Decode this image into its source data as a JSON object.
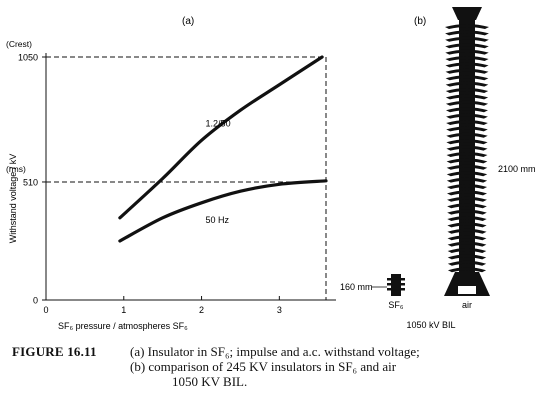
{
  "chart_data": [
    {
      "type": "line",
      "panel_label": "(a)",
      "xlabel": "SF₆ pressure / atmospheres SF₆",
      "ylabel": "Withstand voltage / kV",
      "xlim": [
        0,
        3.6
      ],
      "ylim": [
        0,
        1050
      ],
      "x_ticks": [
        "0",
        "1",
        "2",
        "3"
      ],
      "y_ticks": [
        "0",
        "510",
        "1050"
      ],
      "y_tick_values": [
        0,
        510,
        1050
      ],
      "y_units": [
        {
          "text": "(Crest)",
          "value": 1050
        },
        {
          "text": "(rms)",
          "value": 510
        }
      ],
      "reference_lines": [
        {
          "y": 1050,
          "x": 3.6
        },
        {
          "y": 510,
          "x": 3.6
        }
      ],
      "series": [
        {
          "name": "1.2/50",
          "x": [
            0.95,
            1.5,
            2.0,
            2.5,
            3.0,
            3.55
          ],
          "y": [
            355,
            525,
            690,
            820,
            930,
            1050
          ]
        },
        {
          "name": "50 Hz",
          "x": [
            0.95,
            1.5,
            2.0,
            2.5,
            3.0,
            3.6
          ],
          "y": [
            255,
            355,
            420,
            470,
            500,
            515
          ]
        }
      ],
      "grid": false
    },
    {
      "type": "diagram",
      "panel_label": "(b)",
      "items": [
        {
          "name": "SF₆",
          "height_label": "160 mm",
          "height_mm": 160
        },
        {
          "name": "air",
          "height_label": "2100 mm",
          "height_mm": 2100
        }
      ],
      "bottom_label": "1050 kV BIL"
    }
  ],
  "caption": {
    "figure": "FIGURE 16.11",
    "line1": "(a)  Insulator in SF₆; impulse and a.c. withstand voltage;",
    "line2": "(b)  comparison  of  245 KV insulators  in  SF₆  and  air",
    "line3": "1050 KV BIL."
  }
}
